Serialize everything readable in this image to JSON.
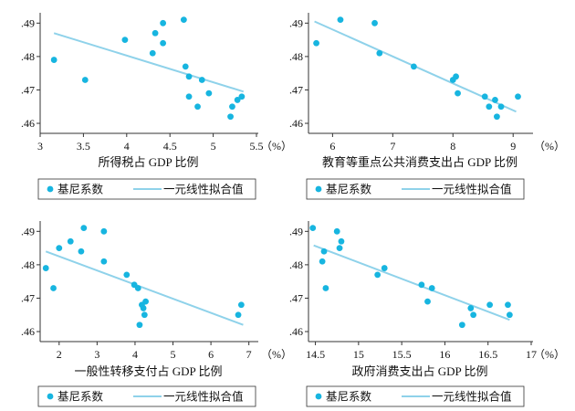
{
  "colors": {
    "point": "#17b5e0",
    "fit": "#8fd2ea",
    "axis": "#333333"
  },
  "legend": {
    "point_label": "基尼系数",
    "fit_label": "一元线性拟合值"
  },
  "chart_data": [
    {
      "type": "scatter",
      "xlabel": "所得税占 GDP 比例",
      "unit": "（%）",
      "xlim": [
        3,
        5.5
      ],
      "ylim": [
        0.457,
        0.492
      ],
      "xticks": [
        "3",
        "3.5",
        "4",
        "4.5",
        "5",
        "5.5"
      ],
      "yticks": [
        ".46",
        ".47",
        ".48",
        ".49"
      ],
      "points": [
        [
          3.16,
          0.479
        ],
        [
          3.52,
          0.473
        ],
        [
          3.98,
          0.485
        ],
        [
          4.3,
          0.481
        ],
        [
          4.33,
          0.487
        ],
        [
          4.42,
          0.49
        ],
        [
          4.42,
          0.484
        ],
        [
          4.66,
          0.491
        ],
        [
          4.68,
          0.477
        ],
        [
          4.72,
          0.474
        ],
        [
          4.72,
          0.468
        ],
        [
          4.82,
          0.465
        ],
        [
          4.87,
          0.473
        ],
        [
          4.95,
          0.469
        ],
        [
          5.2,
          0.462
        ],
        [
          5.22,
          0.465
        ],
        [
          5.28,
          0.467
        ],
        [
          5.33,
          0.468
        ]
      ],
      "fit": [
        [
          3.16,
          0.487
        ],
        [
          5.35,
          0.4695
        ]
      ],
      "legend": [
        "基尼系数",
        "一元线性拟合值"
      ]
    },
    {
      "type": "scatter",
      "xlabel": "教育等重点公共消费支出占 GDP 比例",
      "unit": "（%）",
      "xlim": [
        5.6,
        9.3
      ],
      "ylim": [
        0.457,
        0.492
      ],
      "xticks": [
        "6",
        "7",
        "8",
        "9"
      ],
      "yticks": [
        ".46",
        ".47",
        ".48",
        ".49"
      ],
      "points": [
        [
          5.73,
          0.484
        ],
        [
          6.13,
          0.491
        ],
        [
          6.7,
          0.49
        ],
        [
          6.78,
          0.481
        ],
        [
          7.35,
          0.477
        ],
        [
          8.0,
          0.473
        ],
        [
          8.05,
          0.474
        ],
        [
          8.08,
          0.469
        ],
        [
          8.53,
          0.468
        ],
        [
          8.6,
          0.465
        ],
        [
          8.7,
          0.467
        ],
        [
          8.73,
          0.462
        ],
        [
          8.8,
          0.465
        ],
        [
          9.08,
          0.468
        ]
      ],
      "fit": [
        [
          5.7,
          0.4905
        ],
        [
          9.05,
          0.4635
        ]
      ],
      "legend": [
        "基尼系数",
        "一元线性拟合值"
      ]
    },
    {
      "type": "scatter",
      "xlabel": "一般性转移支付占 GDP 比例",
      "unit": "（%）",
      "xlim": [
        1.5,
        7.2
      ],
      "ylim": [
        0.457,
        0.492
      ],
      "xticks": [
        "2",
        "3",
        "4",
        "5",
        "6",
        "7"
      ],
      "yticks": [
        ".46",
        ".47",
        ".48",
        ".49"
      ],
      "points": [
        [
          1.65,
          0.479
        ],
        [
          1.85,
          0.473
        ],
        [
          2.0,
          0.485
        ],
        [
          2.3,
          0.487
        ],
        [
          2.58,
          0.484
        ],
        [
          2.65,
          0.491
        ],
        [
          3.18,
          0.481
        ],
        [
          3.18,
          0.49
        ],
        [
          3.78,
          0.477
        ],
        [
          3.98,
          0.474
        ],
        [
          4.08,
          0.473
        ],
        [
          4.12,
          0.462
        ],
        [
          4.18,
          0.468
        ],
        [
          4.22,
          0.467
        ],
        [
          4.25,
          0.465
        ],
        [
          4.28,
          0.469
        ],
        [
          6.72,
          0.465
        ],
        [
          6.8,
          0.468
        ]
      ],
      "fit": [
        [
          1.65,
          0.484
        ],
        [
          6.85,
          0.462
        ]
      ],
      "legend": [
        "基尼系数",
        "一元线性拟合值"
      ]
    },
    {
      "type": "scatter",
      "xlabel": "政府消费支出占 GDP 比例",
      "unit": "（%）",
      "xlim": [
        14.42,
        17.0
      ],
      "ylim": [
        0.457,
        0.492
      ],
      "xticks": [
        "14.5",
        "15",
        "15.5",
        "16",
        "16.5",
        "17"
      ],
      "yticks": [
        ".46",
        ".47",
        ".48",
        ".49"
      ],
      "points": [
        [
          14.47,
          0.491
        ],
        [
          14.58,
          0.481
        ],
        [
          14.6,
          0.484
        ],
        [
          14.62,
          0.473
        ],
        [
          14.75,
          0.49
        ],
        [
          14.78,
          0.485
        ],
        [
          14.8,
          0.487
        ],
        [
          15.22,
          0.477
        ],
        [
          15.3,
          0.479
        ],
        [
          15.73,
          0.474
        ],
        [
          15.8,
          0.469
        ],
        [
          15.85,
          0.473
        ],
        [
          16.2,
          0.462
        ],
        [
          16.3,
          0.467
        ],
        [
          16.33,
          0.465
        ],
        [
          16.52,
          0.468
        ],
        [
          16.73,
          0.468
        ],
        [
          16.75,
          0.465
        ]
      ],
      "fit": [
        [
          14.48,
          0.4858
        ],
        [
          16.75,
          0.4635
        ]
      ],
      "legend": [
        "基尼系数",
        "一元线性拟合值"
      ]
    }
  ]
}
